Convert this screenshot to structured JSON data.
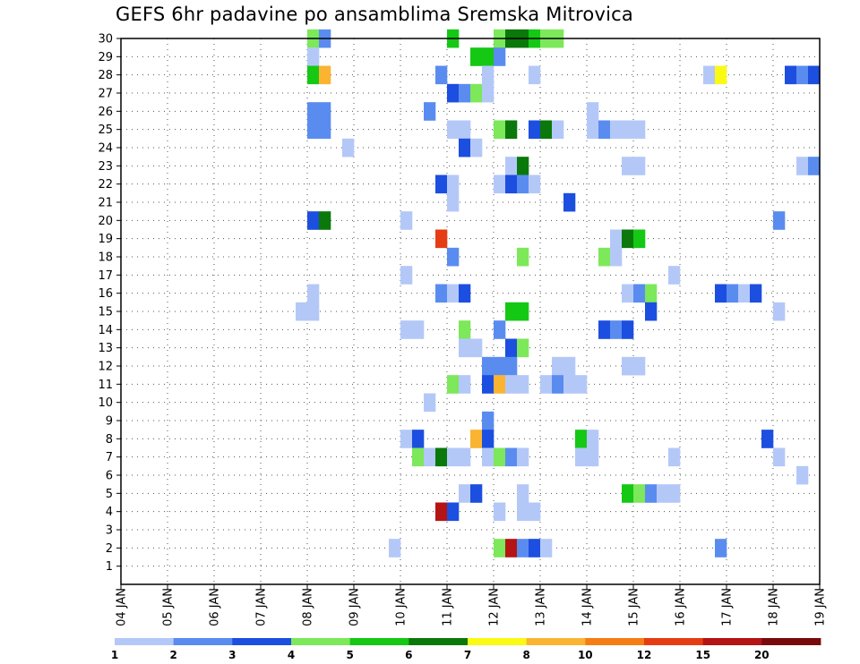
{
  "chart_data": {
    "type": "heatmap",
    "title": "GEFS 6hr padavine po ansamblima Sremska Mitrovica",
    "xlabel": "",
    "ylabel": "",
    "x_tick_labels": [
      "04 JAN",
      "05 JAN",
      "06 JAN",
      "07 JAN",
      "08 JAN",
      "09 JAN",
      "10 JAN",
      "11 JAN",
      "12 JAN",
      "13 JAN",
      "14 JAN",
      "15 JAN",
      "16 JAN",
      "17 JAN",
      "18 JAN",
      "19 JAN"
    ],
    "y_tick_labels": [
      "1",
      "2",
      "3",
      "4",
      "5",
      "6",
      "7",
      "8",
      "9",
      "10",
      "11",
      "12",
      "13",
      "14",
      "15",
      "16",
      "17",
      "18",
      "19",
      "20",
      "21",
      "22",
      "23",
      "24",
      "25",
      "26",
      "27",
      "28",
      "29",
      "30"
    ],
    "x_range": [
      "04 JAN 00Z",
      "19 JAN 00Z"
    ],
    "y_range": [
      0,
      30
    ],
    "grid": true,
    "time_step": "6hr",
    "legend": {
      "placement": "bottom",
      "labels": [
        "1",
        "2",
        "3",
        "4",
        "5",
        "6",
        "7",
        "8",
        "10",
        "12",
        "15",
        "20"
      ],
      "colors": [
        "#b4c8f8",
        "#5a8cf0",
        "#1c4ee0",
        "#7ce85a",
        "#14c814",
        "#0a780a",
        "#fafa14",
        "#fab432",
        "#f57d14",
        "#e63c14",
        "#b41414",
        "#780a0a"
      ]
    },
    "cells": [
      {
        "member": 30,
        "time": "08 JAN 00Z",
        "level": 4
      },
      {
        "member": 30,
        "time": "08 JAN 06Z",
        "level": 2
      },
      {
        "member": 30,
        "time": "11 JAN 00Z",
        "level": 5
      },
      {
        "member": 30,
        "time": "12 JAN 00Z",
        "level": 4
      },
      {
        "member": 30,
        "time": "12 JAN 06Z",
        "level": 6
      },
      {
        "member": 30,
        "time": "12 JAN 12Z",
        "level": 6
      },
      {
        "member": 30,
        "time": "12 JAN 18Z",
        "level": 5
      },
      {
        "member": 30,
        "time": "13 JAN 00Z",
        "level": 4
      },
      {
        "member": 30,
        "time": "13 JAN 06Z",
        "level": 4
      },
      {
        "member": 29,
        "time": "08 JAN 00Z",
        "level": 1
      },
      {
        "member": 29,
        "time": "11 JAN 12Z",
        "level": 5
      },
      {
        "member": 29,
        "time": "11 JAN 18Z",
        "level": 5
      },
      {
        "member": 29,
        "time": "12 JAN 00Z",
        "level": 2
      },
      {
        "member": 28,
        "time": "08 JAN 00Z",
        "level": 5
      },
      {
        "member": 28,
        "time": "08 JAN 06Z",
        "level": 8
      },
      {
        "member": 28,
        "time": "10 JAN 18Z",
        "level": 2
      },
      {
        "member": 28,
        "time": "11 JAN 18Z",
        "level": 1
      },
      {
        "member": 28,
        "time": "12 JAN 18Z",
        "level": 1
      },
      {
        "member": 28,
        "time": "16 JAN 12Z",
        "level": 1
      },
      {
        "member": 28,
        "time": "16 JAN 18Z",
        "level": 7
      },
      {
        "member": 28,
        "time": "18 JAN 06Z",
        "level": 3
      },
      {
        "member": 28,
        "time": "18 JAN 12Z",
        "level": 2
      },
      {
        "member": 28,
        "time": "18 JAN 18Z",
        "level": 3
      },
      {
        "member": 27,
        "time": "11 JAN 00Z",
        "level": 3
      },
      {
        "member": 27,
        "time": "11 JAN 06Z",
        "level": 2
      },
      {
        "member": 27,
        "time": "11 JAN 12Z",
        "level": 4
      },
      {
        "member": 27,
        "time": "11 JAN 18Z",
        "level": 1
      },
      {
        "member": 26,
        "time": "08 JAN 00Z",
        "level": 2
      },
      {
        "member": 26,
        "time": "08 JAN 06Z",
        "level": 2
      },
      {
        "member": 26,
        "time": "10 JAN 12Z",
        "level": 2
      },
      {
        "member": 26,
        "time": "14 JAN 00Z",
        "level": 1
      },
      {
        "member": 25,
        "time": "08 JAN 00Z",
        "level": 2
      },
      {
        "member": 25,
        "time": "08 JAN 06Z",
        "level": 2
      },
      {
        "member": 25,
        "time": "11 JAN 00Z",
        "level": 1
      },
      {
        "member": 25,
        "time": "11 JAN 06Z",
        "level": 1
      },
      {
        "member": 25,
        "time": "12 JAN 00Z",
        "level": 4
      },
      {
        "member": 25,
        "time": "12 JAN 06Z",
        "level": 6
      },
      {
        "member": 25,
        "time": "12 JAN 18Z",
        "level": 3
      },
      {
        "member": 25,
        "time": "13 JAN 00Z",
        "level": 6
      },
      {
        "member": 25,
        "time": "13 JAN 06Z",
        "level": 1
      },
      {
        "member": 25,
        "time": "14 JAN 00Z",
        "level": 1
      },
      {
        "member": 25,
        "time": "14 JAN 06Z",
        "level": 2
      },
      {
        "member": 25,
        "time": "14 JAN 12Z",
        "level": 1
      },
      {
        "member": 25,
        "time": "14 JAN 18Z",
        "level": 1
      },
      {
        "member": 25,
        "time": "15 JAN 00Z",
        "level": 1
      },
      {
        "member": 24,
        "time": "08 JAN 18Z",
        "level": 1
      },
      {
        "member": 24,
        "time": "11 JAN 06Z",
        "level": 3
      },
      {
        "member": 24,
        "time": "11 JAN 12Z",
        "level": 1
      },
      {
        "member": 23,
        "time": "12 JAN 06Z",
        "level": 1
      },
      {
        "member": 23,
        "time": "12 JAN 12Z",
        "level": 6
      },
      {
        "member": 23,
        "time": "14 JAN 18Z",
        "level": 1
      },
      {
        "member": 23,
        "time": "15 JAN 00Z",
        "level": 1
      },
      {
        "member": 23,
        "time": "18 JAN 12Z",
        "level": 1
      },
      {
        "member": 23,
        "time": "18 JAN 18Z",
        "level": 2
      },
      {
        "member": 22,
        "time": "10 JAN 18Z",
        "level": 3
      },
      {
        "member": 22,
        "time": "11 JAN 00Z",
        "level": 1
      },
      {
        "member": 22,
        "time": "12 JAN 00Z",
        "level": 1
      },
      {
        "member": 22,
        "time": "12 JAN 06Z",
        "level": 3
      },
      {
        "member": 22,
        "time": "12 JAN 12Z",
        "level": 2
      },
      {
        "member": 22,
        "time": "12 JAN 18Z",
        "level": 1
      },
      {
        "member": 21,
        "time": "11 JAN 00Z",
        "level": 1
      },
      {
        "member": 21,
        "time": "13 JAN 12Z",
        "level": 3
      },
      {
        "member": 20,
        "time": "08 JAN 00Z",
        "level": 3
      },
      {
        "member": 20,
        "time": "08 JAN 06Z",
        "level": 6
      },
      {
        "member": 20,
        "time": "10 JAN 00Z",
        "level": 1
      },
      {
        "member": 20,
        "time": "18 JAN 00Z",
        "level": 2
      },
      {
        "member": 19,
        "time": "10 JAN 18Z",
        "level": 12
      },
      {
        "member": 19,
        "time": "14 JAN 12Z",
        "level": 1
      },
      {
        "member": 19,
        "time": "14 JAN 18Z",
        "level": 6
      },
      {
        "member": 19,
        "time": "15 JAN 00Z",
        "level": 5
      },
      {
        "member": 18,
        "time": "11 JAN 00Z",
        "level": 2
      },
      {
        "member": 18,
        "time": "12 JAN 12Z",
        "level": 4
      },
      {
        "member": 18,
        "time": "14 JAN 06Z",
        "level": 4
      },
      {
        "member": 18,
        "time": "14 JAN 12Z",
        "level": 1
      },
      {
        "member": 17,
        "time": "10 JAN 00Z",
        "level": 1
      },
      {
        "member": 17,
        "time": "15 JAN 18Z",
        "level": 1
      },
      {
        "member": 16,
        "time": "08 JAN 00Z",
        "level": 1
      },
      {
        "member": 16,
        "time": "10 JAN 18Z",
        "level": 2
      },
      {
        "member": 16,
        "time": "11 JAN 00Z",
        "level": 1
      },
      {
        "member": 16,
        "time": "11 JAN 06Z",
        "level": 3
      },
      {
        "member": 16,
        "time": "14 JAN 18Z",
        "level": 1
      },
      {
        "member": 16,
        "time": "15 JAN 00Z",
        "level": 2
      },
      {
        "member": 16,
        "time": "15 JAN 06Z",
        "level": 4
      },
      {
        "member": 16,
        "time": "16 JAN 18Z",
        "level": 3
      },
      {
        "member": 16,
        "time": "17 JAN 00Z",
        "level": 2
      },
      {
        "member": 16,
        "time": "17 JAN 06Z",
        "level": 1
      },
      {
        "member": 16,
        "time": "17 JAN 12Z",
        "level": 3
      },
      {
        "member": 15,
        "time": "07 JAN 18Z",
        "level": 1
      },
      {
        "member": 15,
        "time": "08 JAN 00Z",
        "level": 1
      },
      {
        "member": 15,
        "time": "12 JAN 06Z",
        "level": 5
      },
      {
        "member": 15,
        "time": "12 JAN 12Z",
        "level": 5
      },
      {
        "member": 15,
        "time": "15 JAN 06Z",
        "level": 3
      },
      {
        "member": 15,
        "time": "18 JAN 00Z",
        "level": 1
      },
      {
        "member": 14,
        "time": "10 JAN 00Z",
        "level": 1
      },
      {
        "member": 14,
        "time": "10 JAN 06Z",
        "level": 1
      },
      {
        "member": 14,
        "time": "11 JAN 06Z",
        "level": 4
      },
      {
        "member": 14,
        "time": "12 JAN 00Z",
        "level": 2
      },
      {
        "member": 14,
        "time": "14 JAN 06Z",
        "level": 3
      },
      {
        "member": 14,
        "time": "14 JAN 12Z",
        "level": 2
      },
      {
        "member": 14,
        "time": "14 JAN 18Z",
        "level": 3
      },
      {
        "member": 13,
        "time": "11 JAN 06Z",
        "level": 1
      },
      {
        "member": 13,
        "time": "11 JAN 12Z",
        "level": 1
      },
      {
        "member": 13,
        "time": "12 JAN 06Z",
        "level": 3
      },
      {
        "member": 13,
        "time": "12 JAN 12Z",
        "level": 4
      },
      {
        "member": 12,
        "time": "11 JAN 18Z",
        "level": 2
      },
      {
        "member": 12,
        "time": "12 JAN 00Z",
        "level": 2
      },
      {
        "member": 12,
        "time": "12 JAN 06Z",
        "level": 2
      },
      {
        "member": 12,
        "time": "13 JAN 06Z",
        "level": 1
      },
      {
        "member": 12,
        "time": "13 JAN 12Z",
        "level": 1
      },
      {
        "member": 12,
        "time": "14 JAN 18Z",
        "level": 1
      },
      {
        "member": 12,
        "time": "15 JAN 00Z",
        "level": 1
      },
      {
        "member": 11,
        "time": "11 JAN 00Z",
        "level": 4
      },
      {
        "member": 11,
        "time": "11 JAN 06Z",
        "level": 1
      },
      {
        "member": 11,
        "time": "11 JAN 18Z",
        "level": 3
      },
      {
        "member": 11,
        "time": "12 JAN 00Z",
        "level": 8
      },
      {
        "member": 11,
        "time": "12 JAN 06Z",
        "level": 1
      },
      {
        "member": 11,
        "time": "12 JAN 12Z",
        "level": 1
      },
      {
        "member": 11,
        "time": "13 JAN 00Z",
        "level": 1
      },
      {
        "member": 11,
        "time": "13 JAN 06Z",
        "level": 2
      },
      {
        "member": 11,
        "time": "13 JAN 12Z",
        "level": 1
      },
      {
        "member": 11,
        "time": "13 JAN 18Z",
        "level": 1
      },
      {
        "member": 10,
        "time": "10 JAN 12Z",
        "level": 1
      },
      {
        "member": 9,
        "time": "11 JAN 18Z",
        "level": 2
      },
      {
        "member": 8,
        "time": "10 JAN 00Z",
        "level": 1
      },
      {
        "member": 8,
        "time": "10 JAN 06Z",
        "level": 3
      },
      {
        "member": 8,
        "time": "11 JAN 12Z",
        "level": 8
      },
      {
        "member": 8,
        "time": "11 JAN 18Z",
        "level": 3
      },
      {
        "member": 8,
        "time": "13 JAN 18Z",
        "level": 5
      },
      {
        "member": 8,
        "time": "14 JAN 00Z",
        "level": 1
      },
      {
        "member": 8,
        "time": "17 JAN 18Z",
        "level": 3
      },
      {
        "member": 7,
        "time": "10 JAN 06Z",
        "level": 4
      },
      {
        "member": 7,
        "time": "10 JAN 12Z",
        "level": 1
      },
      {
        "member": 7,
        "time": "10 JAN 18Z",
        "level": 6
      },
      {
        "member": 7,
        "time": "11 JAN 00Z",
        "level": 1
      },
      {
        "member": 7,
        "time": "11 JAN 06Z",
        "level": 1
      },
      {
        "member": 7,
        "time": "11 JAN 18Z",
        "level": 1
      },
      {
        "member": 7,
        "time": "12 JAN 00Z",
        "level": 4
      },
      {
        "member": 7,
        "time": "12 JAN 06Z",
        "level": 2
      },
      {
        "member": 7,
        "time": "12 JAN 12Z",
        "level": 1
      },
      {
        "member": 7,
        "time": "13 JAN 18Z",
        "level": 1
      },
      {
        "member": 7,
        "time": "14 JAN 00Z",
        "level": 1
      },
      {
        "member": 7,
        "time": "15 JAN 18Z",
        "level": 1
      },
      {
        "member": 7,
        "time": "18 JAN 00Z",
        "level": 1
      },
      {
        "member": 6,
        "time": "18 JAN 12Z",
        "level": 1
      },
      {
        "member": 5,
        "time": "11 JAN 06Z",
        "level": 1
      },
      {
        "member": 5,
        "time": "11 JAN 12Z",
        "level": 3
      },
      {
        "member": 5,
        "time": "12 JAN 12Z",
        "level": 1
      },
      {
        "member": 5,
        "time": "14 JAN 18Z",
        "level": 5
      },
      {
        "member": 5,
        "time": "15 JAN 00Z",
        "level": 4
      },
      {
        "member": 5,
        "time": "15 JAN 06Z",
        "level": 2
      },
      {
        "member": 5,
        "time": "15 JAN 12Z",
        "level": 1
      },
      {
        "member": 5,
        "time": "15 JAN 18Z",
        "level": 1
      },
      {
        "member": 4,
        "time": "10 JAN 18Z",
        "level": 15
      },
      {
        "member": 4,
        "time": "11 JAN 00Z",
        "level": 3
      },
      {
        "member": 4,
        "time": "12 JAN 00Z",
        "level": 1
      },
      {
        "member": 4,
        "time": "12 JAN 12Z",
        "level": 1
      },
      {
        "member": 4,
        "time": "12 JAN 18Z",
        "level": 1
      },
      {
        "member": 2,
        "time": "09 JAN 18Z",
        "level": 1
      },
      {
        "member": 2,
        "time": "12 JAN 00Z",
        "level": 4
      },
      {
        "member": 2,
        "time": "12 JAN 06Z",
        "level": 15
      },
      {
        "member": 2,
        "time": "12 JAN 12Z",
        "level": 2
      },
      {
        "member": 2,
        "time": "12 JAN 18Z",
        "level": 3
      },
      {
        "member": 2,
        "time": "13 JAN 00Z",
        "level": 1
      },
      {
        "member": 2,
        "time": "16 JAN 18Z",
        "level": 2
      }
    ]
  }
}
